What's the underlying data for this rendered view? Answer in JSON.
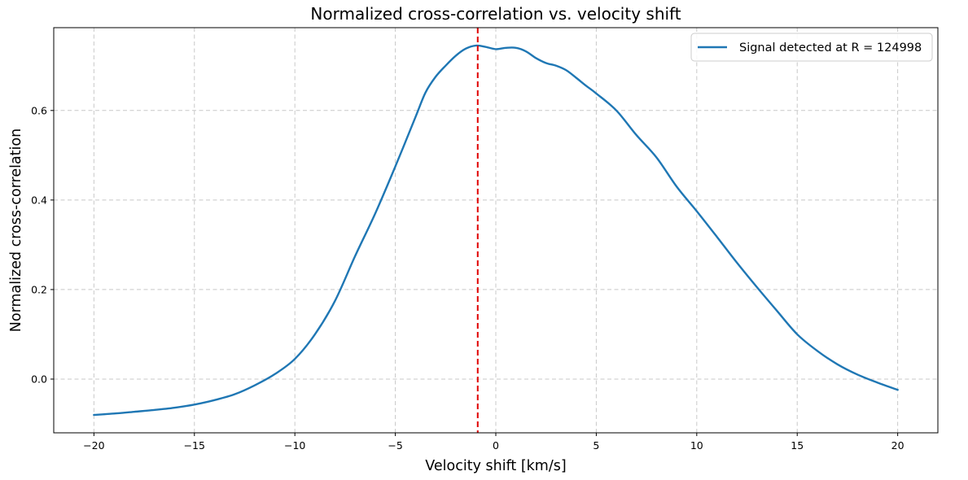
{
  "chart_data": {
    "type": "line",
    "title": "Normalized cross-correlation vs. velocity shift",
    "xlabel": "Velocity shift [km/s]",
    "ylabel": "Normalized cross-correlation",
    "xlim": [
      -22,
      22
    ],
    "ylim": [
      -0.12,
      0.785
    ],
    "xticks": [
      -20,
      -15,
      -10,
      -5,
      0,
      5,
      10,
      15,
      20
    ],
    "xtick_labels": [
      "−20",
      "−15",
      "−10",
      "−5",
      "0",
      "5",
      "10",
      "15",
      "20"
    ],
    "yticks": [
      0.0,
      0.2,
      0.4,
      0.6
    ],
    "ytick_labels": [
      "0.0",
      "0.2",
      "0.4",
      "0.6"
    ],
    "grid": true,
    "legend_position": "top-right",
    "series": [
      {
        "name": "Signal detected at R = 124998",
        "color": "#1f77b4",
        "x": [
          -20,
          -19,
          -18,
          -17,
          -16,
          -15,
          -14,
          -13,
          -12,
          -11,
          -10,
          -9,
          -8,
          -7,
          -6,
          -5,
          -4,
          -3.5,
          -3,
          -2.5,
          -2,
          -1.5,
          -1,
          -0.5,
          0,
          0.5,
          1,
          1.5,
          2,
          2.5,
          3,
          3.5,
          4,
          4.5,
          5,
          6,
          7,
          8,
          9,
          10,
          11,
          12,
          13,
          14,
          15,
          16,
          17,
          18,
          19,
          20
        ],
        "y": [
          -0.08,
          -0.077,
          -0.073,
          -0.069,
          -0.064,
          -0.057,
          -0.047,
          -0.034,
          -0.014,
          0.011,
          0.045,
          0.1,
          0.175,
          0.275,
          0.37,
          0.475,
          0.585,
          0.64,
          0.675,
          0.7,
          0.722,
          0.738,
          0.745,
          0.742,
          0.737,
          0.74,
          0.74,
          0.732,
          0.717,
          0.706,
          0.7,
          0.69,
          0.673,
          0.655,
          0.638,
          0.6,
          0.545,
          0.495,
          0.43,
          0.375,
          0.318,
          0.26,
          0.205,
          0.152,
          0.1,
          0.063,
          0.033,
          0.01,
          -0.008,
          -0.024
        ]
      }
    ],
    "reference_line": {
      "type": "vertical",
      "x": -0.9,
      "color": "#e00000",
      "style": "dashed"
    }
  }
}
